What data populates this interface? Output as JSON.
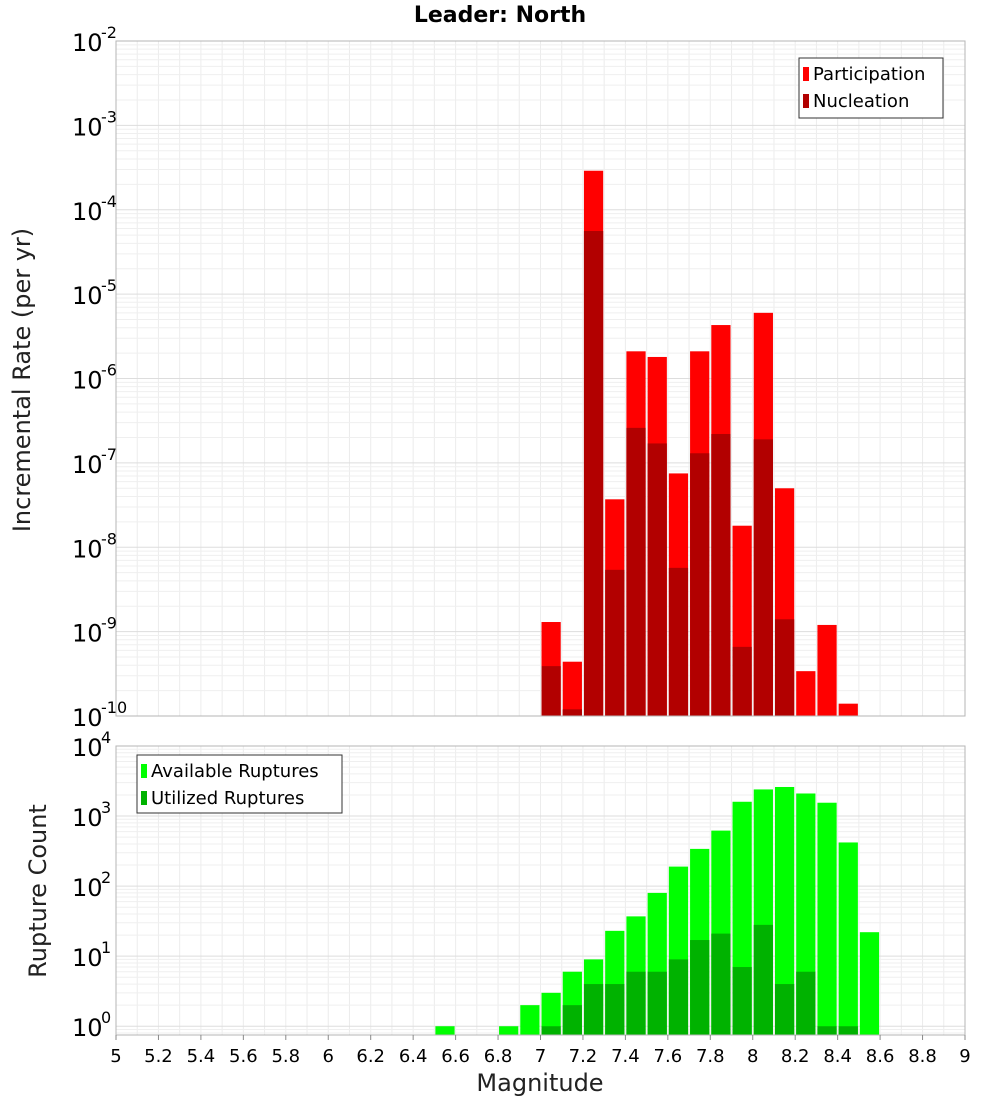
{
  "chart_data": [
    {
      "type": "bar",
      "title": "Leader: North",
      "ylabel": "Incremental Rate (per yr)",
      "xlabel": "",
      "xlim": [
        5,
        9
      ],
      "ylim": [
        1e-10,
        0.01
      ],
      "yscale": "log",
      "ytick_exponents": [
        "-10",
        "-9",
        "-8",
        "-7",
        "-6",
        "-5",
        "-4",
        "-3",
        "-2"
      ],
      "ytick_base": "10",
      "grid": true,
      "legend_position": "top-right",
      "bar_width": 0.1,
      "x": [
        7.0,
        7.1,
        7.2,
        7.3,
        7.4,
        7.5,
        7.6,
        7.7,
        7.8,
        7.9,
        8.0,
        8.1,
        8.2,
        8.3,
        8.4
      ],
      "series": [
        {
          "name": "Participation",
          "color": "#ff0000",
          "values": [
            1.3e-09,
            4.4e-10,
            0.00029,
            3.7e-08,
            2.1e-06,
            1.8e-06,
            7.5e-08,
            2.1e-06,
            4.3e-06,
            1.8e-08,
            6e-06,
            5e-08,
            3.4e-10,
            1.2e-09,
            1.4e-10
          ]
        },
        {
          "name": "Nucleation",
          "color": "#b20000",
          "values": [
            3.9e-10,
            1.2e-10,
            5.6e-05,
            5.4e-09,
            2.6e-07,
            1.7e-07,
            5.7e-09,
            1.3e-07,
            2.2e-07,
            6.6e-10,
            1.9e-07,
            1.4e-09,
            null,
            null,
            null
          ]
        }
      ]
    },
    {
      "type": "bar",
      "title": "",
      "ylabel": "Rupture Count",
      "xlabel": "Magnitude",
      "xlim": [
        5,
        9
      ],
      "ylim": [
        0.75,
        10000.0
      ],
      "yscale": "log",
      "ytick_exponents": [
        "0",
        "1",
        "2",
        "3",
        "4"
      ],
      "ytick_base": "10",
      "xticks": [
        "5",
        "5.2",
        "5.4",
        "5.6",
        "5.8",
        "6",
        "6.2",
        "6.4",
        "6.6",
        "6.8",
        "7",
        "7.2",
        "7.4",
        "7.6",
        "7.8",
        "8",
        "8.2",
        "8.4",
        "8.6",
        "8.8",
        "9"
      ],
      "grid": true,
      "legend_position": "top-left",
      "bar_width": 0.1,
      "x": [
        6.5,
        6.8,
        6.9,
        7.0,
        7.1,
        7.2,
        7.3,
        7.4,
        7.5,
        7.6,
        7.7,
        7.8,
        7.9,
        8.0,
        8.1,
        8.2,
        8.3,
        8.4,
        8.5
      ],
      "series": [
        {
          "name": "Available Ruptures",
          "color": "#00ff00",
          "values": [
            1,
            1,
            2,
            3,
            6,
            9,
            23,
            37,
            80,
            190,
            340,
            620,
            1600,
            2400,
            2600,
            2100,
            1550,
            420,
            22
          ]
        },
        {
          "name": "Utilized Ruptures",
          "color": "#00b200",
          "values": [
            null,
            null,
            null,
            1,
            2,
            4,
            4,
            6,
            6,
            9,
            17,
            21,
            7,
            28,
            4,
            6,
            1,
            1,
            null
          ]
        }
      ]
    }
  ]
}
